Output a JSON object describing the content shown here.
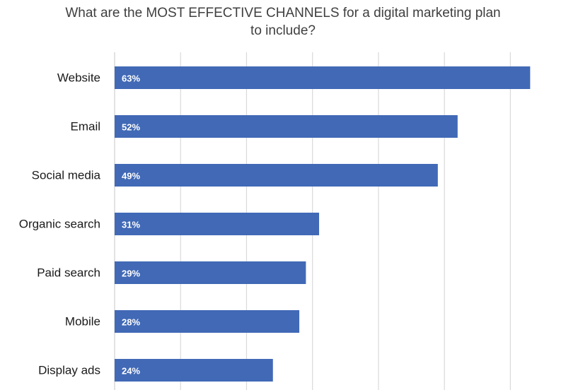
{
  "chart_data": {
    "type": "bar",
    "orientation": "horizontal",
    "title_lines": [
      "What are the MOST EFFECTIVE CHANNELS for a digital marketing plan",
      "to include?"
    ],
    "categories": [
      "Website",
      "Email",
      "Social media",
      "Organic search",
      "Paid search",
      "Mobile",
      "Display ads"
    ],
    "values": [
      63,
      52,
      49,
      31,
      29,
      28,
      24
    ],
    "value_labels": [
      "63%",
      "52%",
      "49%",
      "31%",
      "29%",
      "28%",
      "24%"
    ],
    "xlim": [
      0,
      65
    ],
    "grid": true,
    "bar_color": "#4169b6",
    "grid_color": "#d9d9d9"
  }
}
